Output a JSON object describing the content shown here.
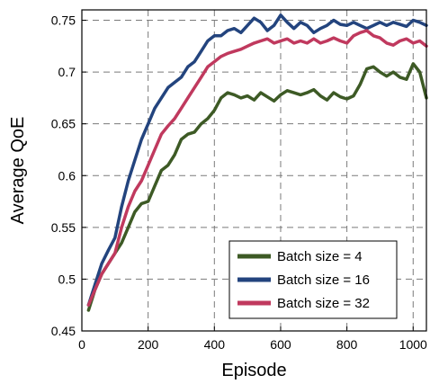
{
  "chart_data": {
    "type": "line",
    "title": "",
    "xlabel": "Episode",
    "ylabel": "Average QoE",
    "xlim": [
      0,
      1040
    ],
    "ylim": [
      0.45,
      0.76
    ],
    "xticks": [
      0,
      200,
      400,
      600,
      800,
      1000
    ],
    "xtick_labels": [
      "0",
      "200",
      "400",
      "600",
      "800",
      "1000"
    ],
    "yticks": [
      0.45,
      0.5,
      0.55,
      0.6,
      0.65,
      0.7,
      0.75
    ],
    "ytick_labels": [
      "0.45",
      "0.5",
      "0.55",
      "0.6",
      "0.65",
      "0.7",
      "0.75"
    ],
    "grid": true,
    "grid_style": "dashed",
    "legend_position": "bottom-right",
    "series": [
      {
        "name": "Batch size = 4",
        "color": "#3d5a25",
        "x": [
          20,
          40,
          60,
          80,
          100,
          120,
          140,
          160,
          180,
          200,
          220,
          240,
          260,
          280,
          300,
          320,
          340,
          360,
          380,
          400,
          420,
          440,
          460,
          480,
          500,
          520,
          540,
          560,
          580,
          600,
          620,
          640,
          660,
          680,
          700,
          720,
          740,
          760,
          780,
          800,
          820,
          840,
          860,
          880,
          900,
          920,
          940,
          960,
          980,
          1000,
          1020,
          1040
        ],
        "y": [
          0.47,
          0.49,
          0.505,
          0.515,
          0.525,
          0.535,
          0.55,
          0.565,
          0.573,
          0.575,
          0.59,
          0.605,
          0.61,
          0.62,
          0.635,
          0.64,
          0.642,
          0.65,
          0.655,
          0.663,
          0.675,
          0.68,
          0.678,
          0.675,
          0.677,
          0.673,
          0.68,
          0.676,
          0.672,
          0.678,
          0.682,
          0.68,
          0.678,
          0.68,
          0.683,
          0.677,
          0.673,
          0.68,
          0.676,
          0.674,
          0.677,
          0.688,
          0.703,
          0.705,
          0.7,
          0.696,
          0.7,
          0.695,
          0.693,
          0.708,
          0.7,
          0.675
        ]
      },
      {
        "name": "Batch size = 16",
        "color": "#23447e",
        "x": [
          20,
          40,
          60,
          80,
          100,
          120,
          140,
          160,
          180,
          200,
          220,
          240,
          260,
          280,
          300,
          320,
          340,
          360,
          380,
          400,
          420,
          440,
          460,
          480,
          500,
          520,
          540,
          560,
          580,
          600,
          620,
          640,
          660,
          680,
          700,
          720,
          740,
          760,
          780,
          800,
          820,
          840,
          860,
          880,
          900,
          920,
          940,
          960,
          980,
          1000,
          1020,
          1040
        ],
        "y": [
          0.475,
          0.495,
          0.515,
          0.528,
          0.54,
          0.57,
          0.595,
          0.615,
          0.635,
          0.65,
          0.665,
          0.675,
          0.685,
          0.69,
          0.695,
          0.705,
          0.71,
          0.72,
          0.73,
          0.735,
          0.735,
          0.74,
          0.742,
          0.738,
          0.745,
          0.752,
          0.748,
          0.74,
          0.745,
          0.755,
          0.748,
          0.742,
          0.748,
          0.745,
          0.738,
          0.742,
          0.745,
          0.75,
          0.746,
          0.745,
          0.748,
          0.745,
          0.742,
          0.745,
          0.748,
          0.745,
          0.748,
          0.746,
          0.744,
          0.75,
          0.748,
          0.745
        ]
      },
      {
        "name": "Batch size = 32",
        "color": "#c0395e",
        "x": [
          20,
          40,
          60,
          80,
          100,
          120,
          140,
          160,
          180,
          200,
          220,
          240,
          260,
          280,
          300,
          320,
          340,
          360,
          380,
          400,
          420,
          440,
          460,
          480,
          500,
          520,
          540,
          560,
          580,
          600,
          620,
          640,
          660,
          680,
          700,
          720,
          740,
          760,
          780,
          800,
          820,
          840,
          860,
          880,
          900,
          920,
          940,
          960,
          980,
          1000,
          1020,
          1040
        ],
        "y": [
          0.475,
          0.49,
          0.505,
          0.515,
          0.525,
          0.55,
          0.57,
          0.585,
          0.595,
          0.61,
          0.625,
          0.64,
          0.648,
          0.655,
          0.665,
          0.675,
          0.685,
          0.695,
          0.705,
          0.71,
          0.715,
          0.718,
          0.72,
          0.722,
          0.725,
          0.728,
          0.73,
          0.732,
          0.728,
          0.73,
          0.732,
          0.728,
          0.73,
          0.728,
          0.732,
          0.728,
          0.73,
          0.733,
          0.73,
          0.728,
          0.735,
          0.738,
          0.74,
          0.735,
          0.733,
          0.728,
          0.726,
          0.73,
          0.732,
          0.728,
          0.73,
          0.725
        ]
      }
    ]
  }
}
